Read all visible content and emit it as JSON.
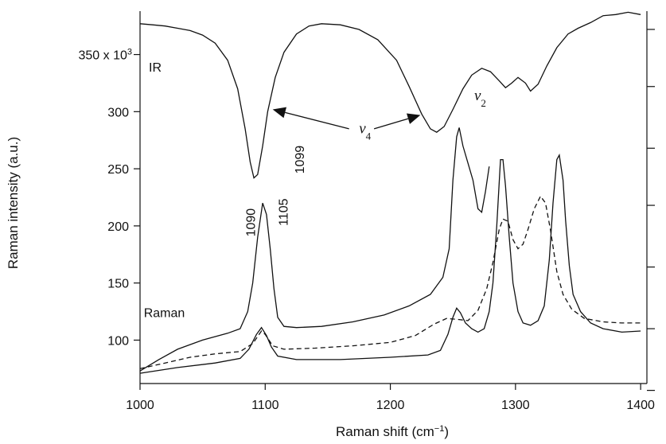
{
  "chart_data": {
    "type": "line",
    "xlabel_main": "Raman shift (cm",
    "xlabel_sup": "−1",
    "xlabel_close": ")",
    "ylabel": "Raman intensity (a.u.)",
    "xlim": [
      1000,
      1405
    ],
    "ylim": [
      62,
      388
    ],
    "x_ticks": [
      "1000",
      "1100",
      "1200",
      "1300",
      "1400"
    ],
    "x_tick_values": [
      1000,
      1100,
      1200,
      1300,
      1400
    ],
    "y_ticks": [
      100,
      150,
      200,
      250,
      300
    ],
    "y_ticks_labels": [
      "100",
      "150",
      "200",
      "250",
      "300"
    ],
    "y_top_label": "350 x 10",
    "y_top_label_sup": "3",
    "y_top_value": 350,
    "right_ticks": [
      372,
      322,
      268,
      218,
      164,
      110,
      56
    ],
    "annotations": [
      {
        "id": "ir",
        "text": "IR",
        "x": 1007,
        "y": 335
      },
      {
        "id": "raman",
        "text": "Raman",
        "x": 1003,
        "y": 120
      },
      {
        "id": "p1090",
        "text": "1090",
        "x": 1092,
        "y": 203,
        "rotate": true
      },
      {
        "id": "p1099",
        "text": "1099",
        "x": 1131,
        "y": 258,
        "rotate": true
      },
      {
        "id": "p1105",
        "text": "1105",
        "x": 1118,
        "y": 212,
        "rotate": true
      }
    ],
    "nu4": {
      "text": "ν",
      "sub": "4",
      "x": 1175,
      "y": 281
    },
    "nu2": {
      "text": "ν",
      "sub": "2",
      "x": 1267,
      "y": 310
    },
    "arrows": [
      {
        "from": [
          1167,
          285
        ],
        "to": [
          1106,
          302
        ]
      },
      {
        "from": [
          1187,
          285
        ],
        "to": [
          1224,
          297
        ]
      }
    ],
    "series": [
      {
        "id": "ir",
        "style": "solid",
        "points": [
          [
            1000,
            377
          ],
          [
            1010,
            376
          ],
          [
            1020,
            375
          ],
          [
            1030,
            373
          ],
          [
            1040,
            371
          ],
          [
            1050,
            367
          ],
          [
            1060,
            360
          ],
          [
            1070,
            345
          ],
          [
            1078,
            320
          ],
          [
            1084,
            285
          ],
          [
            1088,
            256
          ],
          [
            1091,
            242
          ],
          [
            1094,
            245
          ],
          [
            1098,
            270
          ],
          [
            1102,
            300
          ],
          [
            1108,
            330
          ],
          [
            1115,
            352
          ],
          [
            1125,
            368
          ],
          [
            1135,
            375
          ],
          [
            1145,
            377
          ],
          [
            1160,
            376
          ],
          [
            1175,
            372
          ],
          [
            1190,
            363
          ],
          [
            1205,
            345
          ],
          [
            1215,
            322
          ],
          [
            1225,
            298
          ],
          [
            1232,
            285
          ],
          [
            1237,
            282
          ],
          [
            1243,
            287
          ],
          [
            1250,
            302
          ],
          [
            1258,
            320
          ],
          [
            1265,
            332
          ],
          [
            1273,
            338
          ],
          [
            1280,
            335
          ],
          [
            1287,
            327
          ],
          [
            1292,
            321
          ],
          [
            1297,
            325
          ],
          [
            1302,
            330
          ],
          [
            1308,
            325
          ],
          [
            1312,
            318
          ],
          [
            1318,
            324
          ],
          [
            1325,
            340
          ],
          [
            1333,
            356
          ],
          [
            1342,
            368
          ],
          [
            1350,
            373
          ],
          [
            1360,
            378
          ],
          [
            1370,
            384
          ],
          [
            1380,
            385
          ],
          [
            1390,
            387
          ],
          [
            1400,
            385
          ]
        ]
      },
      {
        "id": "raman-1",
        "style": "solid",
        "points": [
          [
            1000,
            73
          ],
          [
            1015,
            83
          ],
          [
            1030,
            92
          ],
          [
            1050,
            100
          ],
          [
            1070,
            106
          ],
          [
            1080,
            110
          ],
          [
            1086,
            125
          ],
          [
            1090,
            150
          ],
          [
            1094,
            190
          ],
          [
            1098,
            220
          ],
          [
            1101,
            210
          ],
          [
            1104,
            180
          ],
          [
            1107,
            145
          ],
          [
            1110,
            120
          ],
          [
            1115,
            112
          ],
          [
            1125,
            111
          ],
          [
            1145,
            112
          ],
          [
            1170,
            116
          ],
          [
            1195,
            122
          ],
          [
            1215,
            130
          ],
          [
            1232,
            140
          ],
          [
            1242,
            155
          ],
          [
            1247,
            180
          ],
          [
            1250,
            240
          ],
          [
            1253,
            278
          ],
          [
            1255,
            286
          ],
          [
            1258,
            270
          ],
          [
            1262,
            255
          ],
          [
            1266,
            240
          ],
          [
            1270,
            215
          ],
          [
            1273,
            212
          ],
          [
            1276,
            230
          ],
          [
            1279,
            252
          ]
        ]
      },
      {
        "id": "raman-2",
        "style": "solid",
        "points": [
          [
            1000,
            71
          ],
          [
            1030,
            76
          ],
          [
            1060,
            80
          ],
          [
            1080,
            84
          ],
          [
            1087,
            92
          ],
          [
            1093,
            105
          ],
          [
            1097,
            111
          ],
          [
            1101,
            104
          ],
          [
            1105,
            94
          ],
          [
            1110,
            86
          ],
          [
            1125,
            83
          ],
          [
            1160,
            83
          ],
          [
            1200,
            85
          ],
          [
            1230,
            87
          ],
          [
            1240,
            91
          ],
          [
            1246,
            105
          ],
          [
            1250,
            120
          ],
          [
            1253,
            128
          ],
          [
            1256,
            124
          ],
          [
            1260,
            115
          ],
          [
            1265,
            110
          ],
          [
            1270,
            107
          ],
          [
            1275,
            110
          ],
          [
            1279,
            125
          ],
          [
            1282,
            150
          ],
          [
            1285,
            200
          ],
          [
            1288,
            258
          ],
          [
            1290,
            258
          ],
          [
            1292,
            235
          ],
          [
            1295,
            190
          ],
          [
            1298,
            150
          ],
          [
            1302,
            125
          ],
          [
            1306,
            115
          ],
          [
            1312,
            113
          ],
          [
            1318,
            117
          ],
          [
            1323,
            130
          ],
          [
            1327,
            170
          ],
          [
            1330,
            220
          ],
          [
            1333,
            258
          ],
          [
            1335,
            262
          ],
          [
            1338,
            240
          ],
          [
            1340,
            205
          ],
          [
            1343,
            165
          ],
          [
            1346,
            140
          ],
          [
            1352,
            125
          ],
          [
            1360,
            115
          ],
          [
            1370,
            110
          ],
          [
            1385,
            107
          ],
          [
            1400,
            108
          ]
        ]
      },
      {
        "id": "raman-3",
        "style": "dashed",
        "points": [
          [
            1000,
            75
          ],
          [
            1020,
            80
          ],
          [
            1040,
            85
          ],
          [
            1060,
            88
          ],
          [
            1080,
            90
          ],
          [
            1090,
            97
          ],
          [
            1097,
            108
          ],
          [
            1100,
            105
          ],
          [
            1106,
            95
          ],
          [
            1115,
            92
          ],
          [
            1140,
            93
          ],
          [
            1170,
            95
          ],
          [
            1200,
            98
          ],
          [
            1220,
            104
          ],
          [
            1235,
            114
          ],
          [
            1245,
            119
          ],
          [
            1255,
            118
          ],
          [
            1262,
            117
          ],
          [
            1270,
            126
          ],
          [
            1277,
            145
          ],
          [
            1282,
            168
          ],
          [
            1287,
            197
          ],
          [
            1290,
            206
          ],
          [
            1294,
            204
          ],
          [
            1298,
            188
          ],
          [
            1302,
            180
          ],
          [
            1306,
            184
          ],
          [
            1310,
            197
          ],
          [
            1315,
            215
          ],
          [
            1320,
            226
          ],
          [
            1324,
            220
          ],
          [
            1328,
            196
          ],
          [
            1333,
            160
          ],
          [
            1338,
            140
          ],
          [
            1345,
            127
          ],
          [
            1355,
            119
          ],
          [
            1370,
            116
          ],
          [
            1385,
            115
          ],
          [
            1400,
            115
          ]
        ]
      }
    ]
  }
}
